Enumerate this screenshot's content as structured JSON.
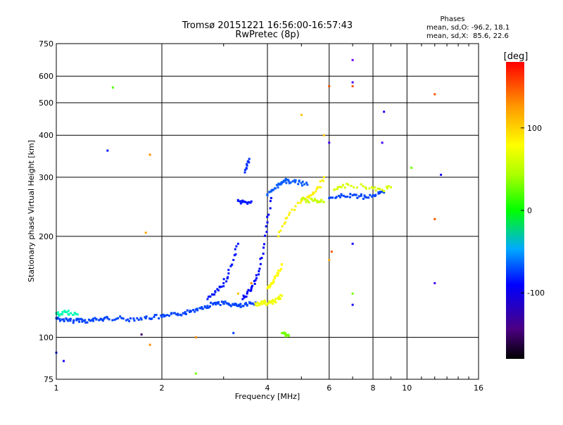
{
  "chart_data": {
    "type": "scatter",
    "title": "Tromsø 20151221 16:56:00-16:57:43",
    "subtitle": "RwPretec (8p)",
    "xlabel": "Frequency [MHz]",
    "ylabel": "Stationary phase Virtual Height [km]",
    "x_scale": "log",
    "y_scale": "log",
    "xlim": [
      1,
      16
    ],
    "ylim": [
      75,
      750
    ],
    "x_ticks": [
      1,
      2,
      4,
      6,
      8,
      10,
      16
    ],
    "x_tick_labels": [
      "1",
      "2",
      "4",
      "6",
      "8",
      "10",
      "16"
    ],
    "y_ticks": [
      75,
      100,
      200,
      300,
      400,
      500,
      600,
      750
    ],
    "y_tick_labels": [
      "75",
      "100",
      "200",
      "300",
      "400",
      "500",
      "600",
      "750"
    ],
    "grid": true,
    "phases_box": {
      "title": "Phases",
      "line_o": "mean, sd,O: -96.2, 18.1",
      "line_x": "mean, sd,X:  85.6, 22.6"
    },
    "colorbar": {
      "label": "[deg]",
      "range": [
        -180,
        180
      ],
      "ticks": [
        100,
        0,
        -100
      ],
      "tick_labels": [
        "100",
        "0",
        "-100"
      ]
    },
    "series": [
      {
        "traces": [
          {
            "x": [
              1.0,
              1.04,
              1.08,
              1.12,
              1.16,
              1.2,
              1.25,
              1.3,
              1.35,
              1.4,
              1.5,
              1.6,
              1.7,
              1.8,
              1.9,
              2.0,
              2.1,
              2.2,
              2.3,
              2.4,
              2.5,
              2.6,
              2.7,
              2.8,
              2.9,
              3.0,
              3.1,
              3.2,
              3.3,
              3.4,
              3.5,
              3.6,
              3.7
            ],
            "y": [
              114,
              113,
              112,
              112,
              113,
              112,
              112,
              113,
              113,
              114,
              114,
              113,
              114,
              114,
              115,
              115,
              116,
              117,
              118,
              119,
              121,
              123,
              124,
              126,
              127,
              126,
              126,
              125,
              124,
              124,
              125,
              126,
              127
            ],
            "phase": -100
          },
          {
            "x": [
              3.4,
              3.5,
              3.6,
              3.7,
              3.8,
              3.9,
              4.0,
              4.1
            ],
            "y": [
              130,
              135,
              140,
              148,
              160,
              185,
              220,
              260
            ],
            "phase": -115
          },
          {
            "x": [
              2.7,
              2.8,
              2.9,
              3.0,
              3.1,
              3.2,
              3.3
            ],
            "y": [
              130,
              134,
              138,
              145,
              155,
              170,
              190
            ],
            "phase": -110
          },
          {
            "x": [
              3.3,
              3.4,
              3.5,
              3.6
            ],
            "y": [
              255,
              253,
              252,
              254
            ],
            "phase": -110
          },
          {
            "x": [
              3.45,
              3.5,
              3.55
            ],
            "y": [
              310,
              325,
              340
            ],
            "phase": -105
          },
          {
            "x": [
              4.0,
              4.1,
              4.2,
              4.3,
              4.4,
              4.5,
              4.6,
              4.8,
              5.0,
              5.2
            ],
            "y": [
              265,
              272,
              278,
              285,
              290,
              293,
              292,
              290,
              288,
              285
            ],
            "phase": -95
          },
          {
            "x": [
              6.0,
              6.3,
              6.6,
              7.0,
              7.3,
              7.6,
              8.0,
              8.3,
              8.6
            ],
            "y": [
              260,
              262,
              264,
              265,
              263,
              262,
              265,
              268,
              270
            ],
            "phase": -100
          },
          {
            "x": [
              4.3,
              4.5,
              4.7,
              5.0,
              5.2,
              5.4,
              5.6,
              5.8
            ],
            "y": [
              200,
              220,
              240,
              255,
              262,
              270,
              280,
              300
            ],
            "phase": 95
          },
          {
            "x": [
              3.7,
              3.8,
              3.9,
              4.0,
              4.1,
              4.2,
              4.3,
              4.4
            ],
            "y": [
              125,
              126,
              127,
              126,
              127,
              128,
              130,
              133
            ],
            "phase": 85
          },
          {
            "x": [
              4.0,
              4.1,
              4.2,
              4.3,
              4.4
            ],
            "y": [
              140,
              145,
              150,
              155,
              165
            ],
            "phase": 90
          },
          {
            "x": [
              4.4,
              4.5,
              4.6
            ],
            "y": [
              103,
              102,
              101
            ],
            "phase": 40
          },
          {
            "x": [
              5.0,
              5.2,
              5.4,
              5.6,
              5.8
            ],
            "y": [
              258,
              256,
              255,
              254,
              253
            ],
            "phase": 70
          },
          {
            "x": [
              6.2,
              6.5,
              6.8,
              7.5,
              8.0,
              8.5,
              9.0
            ],
            "y": [
              275,
              280,
              285,
              282,
              278,
              275,
              280
            ],
            "phase": 75
          },
          {
            "x": [
              1.0,
              1.03,
              1.06,
              1.1,
              1.15
            ],
            "y": [
              118,
              117,
              119,
              118,
              117
            ],
            "phase": -40
          }
        ],
        "scattered": [
          {
            "x": 1.45,
            "y": 555,
            "phase": 30
          },
          {
            "x": 1.4,
            "y": 360,
            "phase": -110
          },
          {
            "x": 1.85,
            "y": 350,
            "phase": 130
          },
          {
            "x": 1.8,
            "y": 205,
            "phase": 120
          },
          {
            "x": 1.85,
            "y": 95,
            "phase": 130
          },
          {
            "x": 1.75,
            "y": 102,
            "phase": -150
          },
          {
            "x": 1.05,
            "y": 85,
            "phase": -120
          },
          {
            "x": 1.0,
            "y": 90,
            "phase": -110
          },
          {
            "x": 2.5,
            "y": 78,
            "phase": 40
          },
          {
            "x": 2.5,
            "y": 100,
            "phase": 130
          },
          {
            "x": 7.0,
            "y": 670,
            "phase": -140
          },
          {
            "x": 7.0,
            "y": 575,
            "phase": -130
          },
          {
            "x": 7.0,
            "y": 560,
            "phase": 150
          },
          {
            "x": 6.0,
            "y": 560,
            "phase": 150
          },
          {
            "x": 8.6,
            "y": 470,
            "phase": -120
          },
          {
            "x": 5.0,
            "y": 460,
            "phase": 110
          },
          {
            "x": 5.8,
            "y": 400,
            "phase": 110
          },
          {
            "x": 6.0,
            "y": 380,
            "phase": -130
          },
          {
            "x": 8.5,
            "y": 380,
            "phase": -130
          },
          {
            "x": 12.0,
            "y": 530,
            "phase": 150
          },
          {
            "x": 12.0,
            "y": 225,
            "phase": 150
          },
          {
            "x": 12.0,
            "y": 145,
            "phase": -130
          },
          {
            "x": 10.3,
            "y": 320,
            "phase": 40
          },
          {
            "x": 12.5,
            "y": 305,
            "phase": -120
          },
          {
            "x": 7.0,
            "y": 190,
            "phase": -120
          },
          {
            "x": 7.0,
            "y": 135,
            "phase": 40
          },
          {
            "x": 6.1,
            "y": 180,
            "phase": 150
          },
          {
            "x": 6.0,
            "y": 170,
            "phase": 120
          },
          {
            "x": 7.0,
            "y": 125,
            "phase": -120
          },
          {
            "x": 3.2,
            "y": 103,
            "phase": -100
          },
          {
            "x": 3.3,
            "y": 135,
            "phase": 110
          },
          {
            "x": 3.6,
            "y": 145,
            "phase": 130
          }
        ]
      }
    ]
  }
}
